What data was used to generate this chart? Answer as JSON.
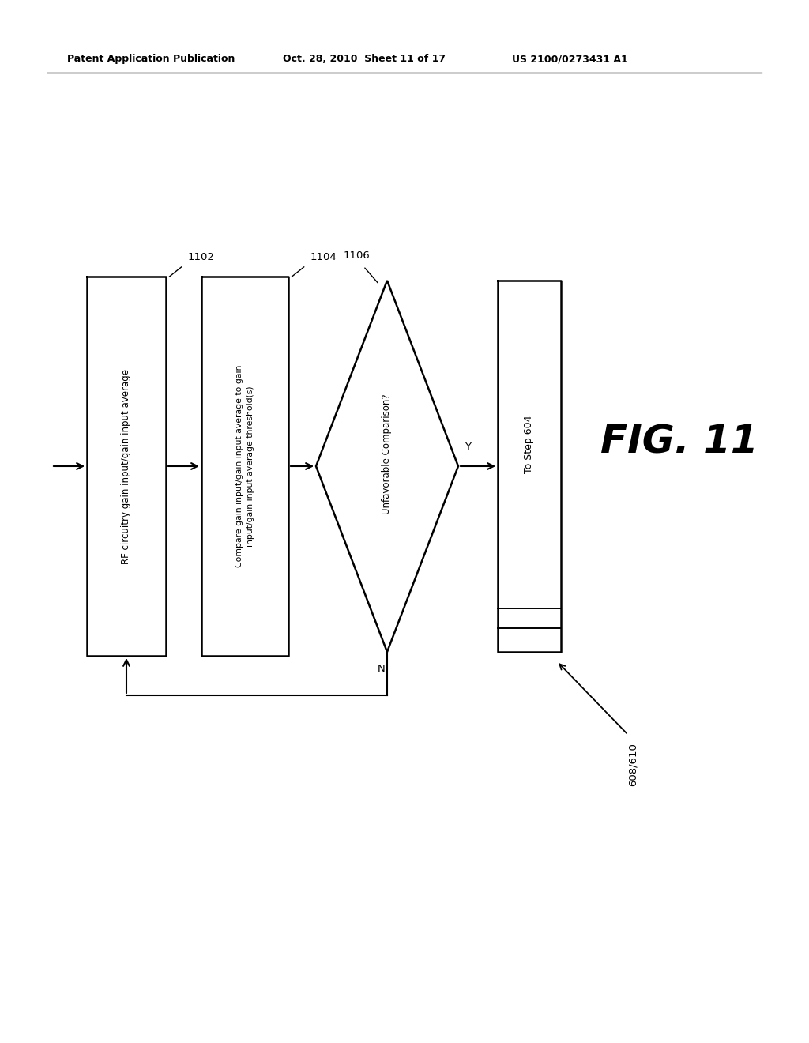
{
  "header_left": "Patent Application Publication",
  "header_mid": "Oct. 28, 2010  Sheet 11 of 17",
  "header_right": "US 2100/0273431 A1",
  "fig_label": "FIG. 11",
  "box1_label": "1102",
  "box1_text": "RF circuitry gain input/gain input average",
  "box2_label": "1104",
  "box2_text": "Compare gain input/gain input average to gain\ninput/gain input average threshold(s)",
  "diamond_label": "1106",
  "diamond_text": "Unfavorable Comparison?",
  "right_box_text": "To Step 604",
  "right_box_label": "608/610",
  "yes_label": "Y",
  "no_label": "N",
  "bg_color": "#ffffff",
  "line_color": "#000000",
  "text_color": "#000000",
  "header_right_correct": "US 2100/0273431 A1"
}
